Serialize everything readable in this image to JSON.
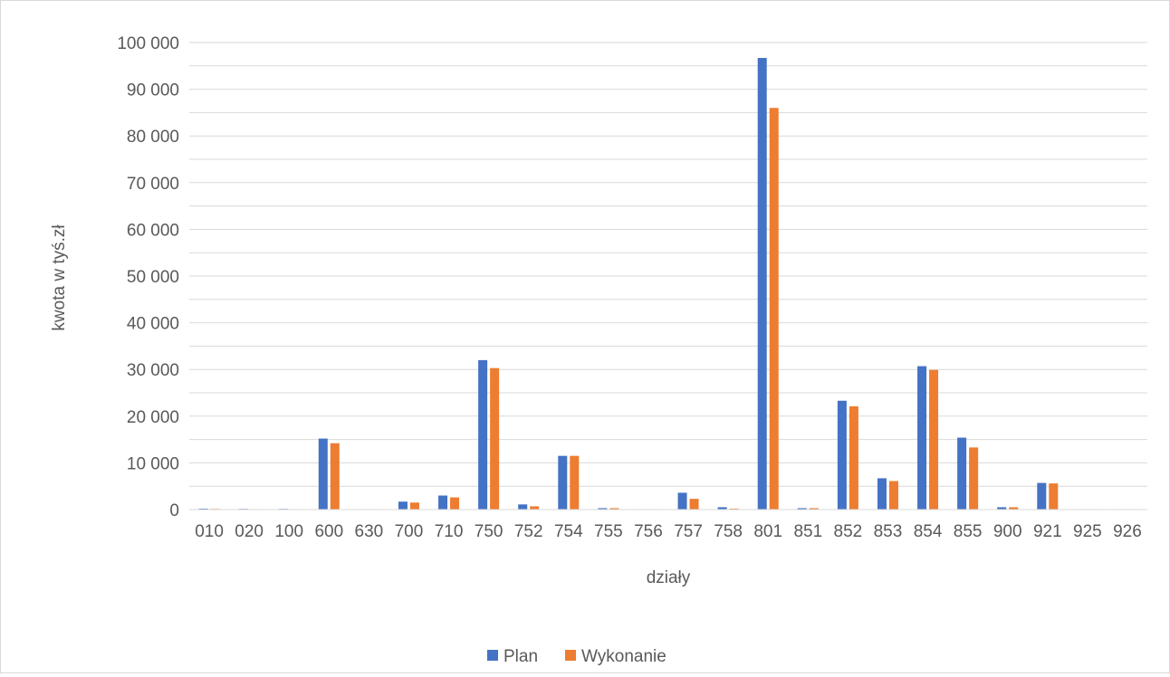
{
  "chart_data": {
    "type": "bar",
    "title": "",
    "xlabel": "działy",
    "ylabel": "kwota w tyś.zł",
    "ylim": [
      0,
      100000
    ],
    "yticks": [
      0,
      10000,
      20000,
      30000,
      40000,
      50000,
      60000,
      70000,
      80000,
      90000,
      100000
    ],
    "ytick_labels": [
      "0",
      "10 000",
      "20 000",
      "30 000",
      "40 000",
      "50 000",
      "60 000",
      "70 000",
      "80 000",
      "90 000",
      "100 000"
    ],
    "minor_gridlines_step": 5000,
    "grid": true,
    "legend_position": "bottom",
    "categories": [
      "010",
      "020",
      "100",
      "600",
      "630",
      "700",
      "710",
      "750",
      "752",
      "754",
      "755",
      "756",
      "757",
      "758",
      "801",
      "851",
      "852",
      "853",
      "854",
      "855",
      "900",
      "921",
      "925",
      "926"
    ],
    "series": [
      {
        "name": "Plan",
        "color": "#4472c4",
        "values": [
          200,
          150,
          150,
          15200,
          100,
          1700,
          3000,
          32000,
          1100,
          11500,
          300,
          100,
          3600,
          500,
          96700,
          300,
          23300,
          6700,
          30700,
          15400,
          500,
          5700,
          100,
          100
        ]
      },
      {
        "name": "Wykonanie",
        "color": "#ed7d31",
        "values": [
          150,
          100,
          100,
          14200,
          100,
          1500,
          2600,
          30300,
          700,
          11500,
          300,
          100,
          2300,
          200,
          86000,
          300,
          22100,
          6100,
          29900,
          13300,
          500,
          5600,
          100,
          100
        ]
      }
    ]
  }
}
